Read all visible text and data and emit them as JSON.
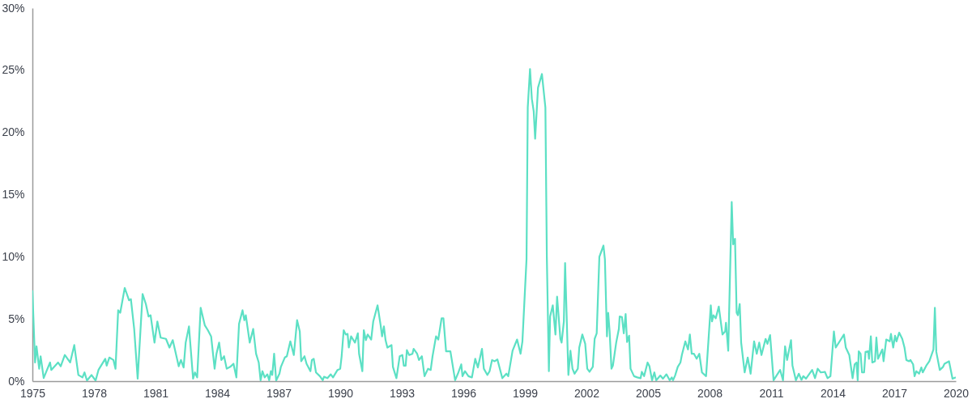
{
  "chart_data": {
    "type": "line",
    "color": "#5ce0c4",
    "grid": false,
    "marker": "none",
    "line_style": "solid",
    "xlim": [
      1975,
      2020
    ],
    "xticks": [
      1975,
      1978,
      1981,
      1984,
      1987,
      1990,
      1993,
      1996,
      1999,
      2002,
      2005,
      2008,
      2011,
      2014,
      2017,
      2020
    ],
    "ylim": [
      0,
      30
    ],
    "yticks": [
      {
        "value": 0,
        "label": "0%"
      },
      {
        "value": 5,
        "label": "5%"
      },
      {
        "value": 10,
        "label": "10%"
      },
      {
        "value": 15,
        "label": "15%"
      },
      {
        "value": 20,
        "label": "20%"
      },
      {
        "value": 25,
        "label": "25%"
      },
      {
        "value": 30,
        "label": "30%"
      }
    ],
    "x": [
      1975.0,
      1975.13,
      1975.2,
      1975.33,
      1975.4,
      1975.55,
      1975.86,
      1975.92,
      1976.25,
      1976.38,
      1976.58,
      1976.84,
      1977.04,
      1977.24,
      1977.44,
      1977.54,
      1977.66,
      1977.88,
      1978.08,
      1978.22,
      1978.55,
      1978.62,
      1978.75,
      1978.95,
      1979.05,
      1979.18,
      1979.28,
      1979.5,
      1979.71,
      1979.8,
      1979.96,
      1980.13,
      1980.37,
      1980.53,
      1980.66,
      1980.76,
      1980.95,
      1981.09,
      1981.25,
      1981.51,
      1981.68,
      1981.84,
      1982.13,
      1982.24,
      1982.37,
      1982.47,
      1982.63,
      1982.83,
      1982.92,
      1983.03,
      1983.2,
      1983.4,
      1983.55,
      1983.71,
      1983.88,
      1983.97,
      1984.1,
      1984.21,
      1984.34,
      1984.47,
      1984.64,
      1984.8,
      1984.94,
      1985.07,
      1985.24,
      1985.33,
      1985.4,
      1985.59,
      1985.76,
      1985.9,
      1986.03,
      1986.12,
      1986.21,
      1986.32,
      1986.45,
      1986.54,
      1986.62,
      1986.69,
      1986.78,
      1986.88,
      1987.04,
      1987.11,
      1987.3,
      1987.4,
      1987.57,
      1987.74,
      1987.9,
      1988.03,
      1988.1,
      1988.26,
      1988.36,
      1988.55,
      1988.62,
      1988.71,
      1988.82,
      1989.01,
      1989.15,
      1989.21,
      1989.38,
      1989.54,
      1989.65,
      1989.87,
      1990.0,
      1990.07,
      1990.17,
      1990.27,
      1990.36,
      1990.42,
      1990.53,
      1990.72,
      1990.86,
      1990.92,
      1991.08,
      1991.15,
      1991.25,
      1991.34,
      1991.51,
      1991.61,
      1991.82,
      1991.97,
      1992.04,
      1992.13,
      1992.21,
      1992.3,
      1992.5,
      1992.57,
      1992.74,
      1992.9,
      1993.03,
      1993.1,
      1993.19,
      1993.25,
      1993.36,
      1993.52,
      1993.58,
      1993.75,
      1993.84,
      1993.98,
      1994.11,
      1994.28,
      1994.41,
      1994.5,
      1994.67,
      1994.78,
      1994.94,
      1995.03,
      1995.16,
      1995.37,
      1995.6,
      1995.76,
      1995.9,
      1995.96,
      1996.08,
      1996.25,
      1996.42,
      1996.58,
      1996.71,
      1996.91,
      1997.0,
      1997.17,
      1997.28,
      1997.4,
      1997.53,
      1997.66,
      1997.9,
      1998.1,
      1998.19,
      1998.4,
      1998.62,
      1998.79,
      1998.88,
      1999.08,
      1999.14,
      1999.25,
      1999.34,
      1999.43,
      1999.5,
      1999.64,
      1999.83,
      2000.0,
      2000.07,
      2000.17,
      2000.23,
      2000.36,
      2000.49,
      2000.57,
      2000.73,
      2000.79,
      2000.9,
      2000.96,
      2001.12,
      2001.22,
      2001.32,
      2001.42,
      2001.58,
      2001.65,
      2001.8,
      2001.94,
      2002.04,
      2002.15,
      2002.31,
      2002.4,
      2002.5,
      2002.63,
      2002.83,
      2002.9,
      2003.0,
      2003.06,
      2003.13,
      2003.22,
      2003.29,
      2003.45,
      2003.58,
      2003.62,
      2003.73,
      2003.82,
      2003.91,
      2003.98,
      2004.08,
      2004.15,
      2004.32,
      2004.48,
      2004.64,
      2004.7,
      2004.81,
      2004.98,
      2005.07,
      2005.2,
      2005.31,
      2005.4,
      2005.6,
      2005.73,
      2005.9,
      2006.06,
      2006.16,
      2006.22,
      2006.32,
      2006.45,
      2006.58,
      2006.65,
      2006.82,
      2006.95,
      2007.04,
      2007.13,
      2007.24,
      2007.37,
      2007.5,
      2007.63,
      2007.83,
      2008.06,
      2008.12,
      2008.19,
      2008.3,
      2008.45,
      2008.63,
      2008.76,
      2008.8,
      2008.91,
      2009.08,
      2009.15,
      2009.24,
      2009.32,
      2009.38,
      2009.47,
      2009.54,
      2009.71,
      2009.86,
      2010.0,
      2010.17,
      2010.3,
      2010.42,
      2010.53,
      2010.73,
      2010.82,
      2010.95,
      2011.12,
      2011.44,
      2011.58,
      2011.68,
      2011.78,
      2011.97,
      2012.04,
      2012.21,
      2012.35,
      2012.48,
      2012.57,
      2012.7,
      2013.0,
      2013.14,
      2013.27,
      2013.42,
      2013.62,
      2013.75,
      2013.89,
      2014.06,
      2014.15,
      2014.55,
      2014.64,
      2014.81,
      2014.97,
      2015.07,
      2015.16,
      2015.22,
      2015.27,
      2015.36,
      2015.43,
      2015.53,
      2015.6,
      2015.73,
      2015.77,
      2015.86,
      2015.93,
      2016.06,
      2016.13,
      2016.21,
      2016.32,
      2016.42,
      2016.48,
      2016.61,
      2016.78,
      2016.84,
      2016.95,
      2017.04,
      2017.11,
      2017.24,
      2017.39,
      2017.5,
      2017.59,
      2017.73,
      2017.79,
      2017.92,
      2017.99,
      2018.08,
      2018.21,
      2018.32,
      2018.39,
      2018.58,
      2018.71,
      2018.91,
      2018.98,
      2019.05,
      2019.22,
      2019.38,
      2019.45,
      2019.67,
      2019.84,
      2020.0
    ],
    "values": [
      7.3,
      1.5,
      2.8,
      1.0,
      2.0,
      0.25,
      1.5,
      0.9,
      1.5,
      1.2,
      2.1,
      1.5,
      2.9,
      0.5,
      0.3,
      0.7,
      0.05,
      0.5,
      0.05,
      0.9,
      1.8,
      1.25,
      1.9,
      1.7,
      1.0,
      5.7,
      5.5,
      7.5,
      6.5,
      6.6,
      4.2,
      0.2,
      7.0,
      6.2,
      5.2,
      5.3,
      3.1,
      4.8,
      3.5,
      3.4,
      2.7,
      3.3,
      1.2,
      1.7,
      1.1,
      3.1,
      4.4,
      0.2,
      0.7,
      0.3,
      5.9,
      4.5,
      4.1,
      3.6,
      1.0,
      2.2,
      3.1,
      1.7,
      2.0,
      1.0,
      1.15,
      1.4,
      0.3,
      4.6,
      5.7,
      4.9,
      5.3,
      3.1,
      4.2,
      2.2,
      1.5,
      0.07,
      0.8,
      0.3,
      0.55,
      0.07,
      0.8,
      0.5,
      2.2,
      0.05,
      0.6,
      1.15,
      1.9,
      2.0,
      3.2,
      2.1,
      4.9,
      4.0,
      1.6,
      2.0,
      1.4,
      0.8,
      1.7,
      1.8,
      0.7,
      0.4,
      0.07,
      0.35,
      0.24,
      0.55,
      0.3,
      0.9,
      1.0,
      2.0,
      4.1,
      3.75,
      3.8,
      2.7,
      3.6,
      3.1,
      3.85,
      2.2,
      0.8,
      4.1,
      3.3,
      3.75,
      3.35,
      4.8,
      6.1,
      4.5,
      3.6,
      4.4,
      3.3,
      2.7,
      2.9,
      1.15,
      0.24,
      2.0,
      2.1,
      1.25,
      1.25,
      2.5,
      2.1,
      2.2,
      2.6,
      2.2,
      1.7,
      2.0,
      0.4,
      1.0,
      0.9,
      2.0,
      3.6,
      3.35,
      5.05,
      5.05,
      2.4,
      2.4,
      0.07,
      0.7,
      1.35,
      0.4,
      0.8,
      0.4,
      0.3,
      1.8,
      1.1,
      2.6,
      1.0,
      0.5,
      0.8,
      1.7,
      1.6,
      1.75,
      0.24,
      0.6,
      0.4,
      2.45,
      3.35,
      2.2,
      3.2,
      9.8,
      22,
      25.1,
      22.7,
      21.7,
      19.5,
      23.6,
      24.7,
      22,
      10.0,
      0.8,
      5.2,
      6.1,
      3.75,
      6.8,
      3.4,
      3.1,
      4.8,
      9.5,
      0.5,
      2.45,
      1.0,
      0.6,
      1.0,
      2.7,
      3.75,
      3.0,
      1.0,
      0.75,
      1.15,
      3.4,
      3.85,
      10.0,
      10.9,
      9.8,
      3.6,
      5.5,
      4.0,
      1.0,
      1.25,
      3.1,
      4.2,
      5.2,
      5.15,
      3.85,
      5.4,
      3.15,
      3.65,
      1.0,
      0.4,
      0.3,
      0.24,
      0.75,
      0.4,
      1.5,
      1.2,
      0.07,
      0.7,
      0.07,
      0.45,
      0.2,
      0.55,
      0.07,
      0.3,
      0.07,
      0.45,
      1.15,
      1.5,
      2.1,
      3.2,
      2.55,
      3.75,
      2.2,
      2.2,
      1.8,
      2.2,
      0.7,
      0.4,
      6.1,
      4.8,
      5.3,
      5.05,
      6.0,
      3.75,
      4.0,
      4.7,
      2.45,
      14.4,
      11.0,
      11.45,
      5.5,
      5.3,
      6.2,
      3.1,
      0.7,
      1.9,
      0.6,
      3.2,
      2.2,
      3.1,
      2.1,
      3.4,
      3.0,
      3.7,
      0.07,
      0.9,
      0.07,
      2.8,
      1.7,
      3.3,
      1.25,
      0.07,
      0.6,
      0.1,
      0.4,
      0.2,
      0.9,
      0.24,
      1.0,
      0.7,
      0.75,
      0.24,
      0.4,
      4.0,
      2.7,
      3.75,
      2.7,
      2.1,
      0.24,
      1.35,
      1.5,
      0.07,
      2.4,
      2.2,
      0.7,
      0.7,
      2.35,
      2.4,
      1.8,
      3.6,
      1.5,
      1.6,
      3.5,
      1.8,
      2.2,
      2.55,
      1.6,
      3.35,
      3.2,
      3.8,
      2.7,
      3.65,
      3.2,
      3.9,
      3.4,
      2.7,
      1.7,
      1.6,
      1.7,
      1.35,
      0.4,
      0.8,
      0.6,
      1.1,
      0.7,
      1.3,
      1.6,
      2.55,
      5.9,
      2.35,
      0.9,
      1.15,
      1.4,
      1.6,
      0.2,
      0.3
    ]
  }
}
